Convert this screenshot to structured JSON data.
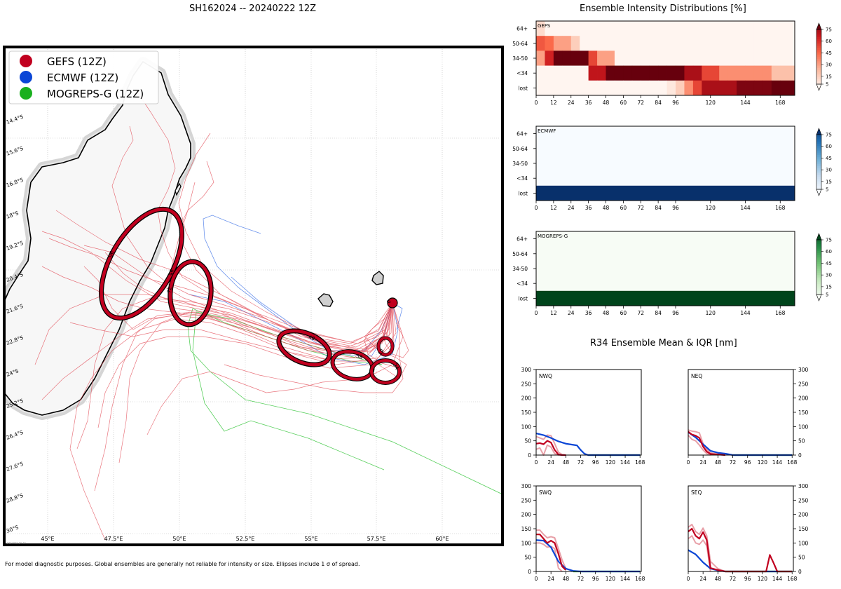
{
  "map": {
    "title": "SH162024 -- 20240222 12Z",
    "legend": [
      {
        "label": "GEFS (12Z)",
        "color": "#c1001f"
      },
      {
        "label": "ECMWF (12Z)",
        "color": "#0b46d6"
      },
      {
        "label": "MOGREPS-G (12Z)",
        "color": "#19b01e"
      }
    ],
    "lat_labels": [
      "14.4°S",
      "15.6°S",
      "16.8°S",
      "18°S",
      "19.2°S",
      "20.4°S",
      "21.6°S",
      "22.8°S",
      "24°S",
      "25.2°S",
      "26.4°S",
      "27.6°S",
      "28.8°S",
      "30°S"
    ],
    "lon_labels": [
      "45°E",
      "47.5°E",
      "50°E",
      "52.5°E",
      "55°E",
      "57.5°E",
      "60°E"
    ],
    "ellipse_labels": [
      "96",
      "96",
      "72",
      "48",
      "36",
      "24",
      "12",
      "0"
    ],
    "timestamp_note": "2024022 20:13",
    "footer": "For model diagnostic purposes. Global ensembles are generally not reliable for intensity or size. Ellipses include 1 σ of spread."
  },
  "chart_data": [
    {
      "type": "heatmap",
      "title": "Ensemble Intensity Distributions [%]",
      "panel_label": "GEFS",
      "colormap": "Reds",
      "y_categories": [
        "64+",
        "50-64",
        "34-50",
        "<34",
        "lost"
      ],
      "x_ticks": [
        0,
        12,
        24,
        36,
        48,
        60,
        72,
        84,
        96,
        120,
        144,
        168
      ],
      "lead_hours": [
        0,
        6,
        12,
        18,
        24,
        30,
        36,
        42,
        48,
        54,
        60,
        66,
        72,
        78,
        84,
        90,
        96,
        102,
        108,
        114,
        120,
        126,
        132,
        138,
        144,
        150,
        156,
        162,
        168
      ],
      "percent": {
        "64+": [
          10,
          0,
          0,
          0,
          0,
          0,
          0,
          0,
          0,
          0,
          0,
          0,
          0,
          0,
          0,
          0,
          0,
          0,
          0,
          0,
          0,
          0,
          0,
          0,
          0,
          0,
          0,
          0,
          0
        ],
        "50-64": [
          50,
          45,
          30,
          30,
          15,
          0,
          0,
          0,
          0,
          0,
          0,
          0,
          0,
          0,
          0,
          0,
          0,
          0,
          0,
          0,
          0,
          0,
          0,
          0,
          0,
          0,
          0,
          0,
          0
        ],
        "34-50": [
          30,
          65,
          90,
          90,
          90,
          90,
          55,
          30,
          30,
          0,
          0,
          0,
          0,
          0,
          0,
          0,
          0,
          0,
          0,
          0,
          0,
          0,
          0,
          0,
          0,
          0,
          0,
          0,
          0
        ],
        "<34": [
          0,
          0,
          0,
          0,
          0,
          0,
          70,
          70,
          90,
          90,
          90,
          90,
          90,
          90,
          90,
          90,
          90,
          75,
          75,
          55,
          55,
          35,
          35,
          35,
          35,
          35,
          35,
          20,
          20
        ],
        "lost": [
          0,
          0,
          0,
          0,
          0,
          0,
          0,
          0,
          0,
          0,
          0,
          0,
          0,
          0,
          0,
          5,
          15,
          35,
          55,
          75,
          75,
          75,
          75,
          85,
          85,
          85,
          85,
          90,
          90
        ]
      },
      "colorbar_ticks": [
        5,
        15,
        30,
        45,
        60,
        75
      ]
    },
    {
      "type": "heatmap",
      "panel_label": "ECMWF",
      "colormap": "Blues",
      "y_categories": [
        "64+",
        "50-64",
        "34-50",
        "<34",
        "lost"
      ],
      "x_ticks": [
        0,
        12,
        24,
        36,
        48,
        60,
        72,
        84,
        96,
        120,
        144,
        168
      ],
      "lead_hours": [
        0,
        168
      ],
      "percent": {
        "64+": [
          0,
          0
        ],
        "50-64": [
          0,
          0
        ],
        "34-50": [
          0,
          0
        ],
        "<34": [
          0,
          0
        ],
        "lost": [
          100,
          100
        ]
      },
      "colorbar_ticks": [
        5,
        15,
        30,
        45,
        60,
        75
      ]
    },
    {
      "type": "heatmap",
      "panel_label": "MOGREPS-G",
      "colormap": "Greens",
      "y_categories": [
        "64+",
        "50-64",
        "34-50",
        "<34",
        "lost"
      ],
      "x_ticks": [
        0,
        12,
        24,
        36,
        48,
        60,
        72,
        84,
        96,
        120,
        144,
        168
      ],
      "lead_hours": [
        0,
        168
      ],
      "percent": {
        "64+": [
          0,
          0
        ],
        "50-64": [
          0,
          0
        ],
        "34-50": [
          0,
          0
        ],
        "<34": [
          0,
          0
        ],
        "lost": [
          100,
          100
        ]
      },
      "colorbar_ticks": [
        5,
        15,
        30,
        45,
        60,
        75
      ]
    },
    {
      "type": "line",
      "title": "R34 Ensemble Mean & IQR [nm]",
      "x_ticks": [
        0,
        24,
        48,
        72,
        96,
        120,
        144,
        168
      ],
      "y_ticks": [
        0,
        50,
        100,
        150,
        200,
        250,
        300
      ],
      "xlim": [
        0,
        170
      ],
      "ylim": [
        0,
        300
      ],
      "panels": [
        {
          "label": "NWQ",
          "yaxis_side": "left",
          "series": [
            {
              "name": "GEFS mean",
              "color": "#c1001f",
              "x": [
                0,
                6,
                12,
                18,
                24,
                30,
                36,
                42,
                48
              ],
              "y": [
                40,
                42,
                38,
                50,
                44,
                18,
                2,
                0,
                0
              ]
            },
            {
              "name": "GEFS IQR high",
              "color": "#e8a0a8",
              "x": [
                0,
                6,
                12,
                18,
                24,
                30,
                36,
                42,
                48
              ],
              "y": [
                65,
                60,
                55,
                70,
                68,
                40,
                10,
                2,
                0
              ]
            },
            {
              "name": "GEFS IQR low",
              "color": "#e8a0a8",
              "x": [
                0,
                6,
                12,
                18,
                24,
                30,
                36,
                42
              ],
              "y": [
                20,
                25,
                0,
                35,
                28,
                5,
                0,
                0
              ]
            },
            {
              "name": "ECMWF",
              "color": "#0b46d6",
              "x": [
                0,
                12,
                24,
                36,
                48,
                60,
                66,
                72,
                78,
                84,
                168
              ],
              "y": [
                76,
                70,
                60,
                48,
                40,
                36,
                34,
                18,
                5,
                0,
                0
              ]
            },
            {
              "name": "MOGREPS-G",
              "color": "#19b01e",
              "x": [
                84,
                168
              ],
              "y": [
                0,
                0
              ]
            }
          ]
        },
        {
          "label": "NEQ",
          "yaxis_side": "right",
          "series": [
            {
              "name": "GEFS mean",
              "color": "#c1001f",
              "x": [
                0,
                6,
                12,
                18,
                24,
                30,
                36,
                48,
                60
              ],
              "y": [
                82,
                72,
                68,
                60,
                30,
                12,
                4,
                2,
                0
              ]
            },
            {
              "name": "GEFS IQR high",
              "color": "#e8a0a8",
              "x": [
                0,
                6,
                12,
                18,
                24,
                30,
                36,
                48,
                60
              ],
              "y": [
                88,
                84,
                82,
                78,
                40,
                20,
                8,
                4,
                0
              ]
            },
            {
              "name": "GEFS IQR low",
              "color": "#e8a0a8",
              "x": [
                0,
                6,
                12,
                18,
                24,
                30,
                36
              ],
              "y": [
                70,
                55,
                50,
                35,
                18,
                5,
                0
              ]
            },
            {
              "name": "ECMWF",
              "color": "#0b46d6",
              "x": [
                0,
                12,
                24,
                36,
                48,
                60,
                72,
                84,
                168
              ],
              "y": [
                80,
                62,
                38,
                15,
                8,
                5,
                0,
                0,
                0
              ]
            },
            {
              "name": "MOGREPS-G",
              "color": "#19b01e",
              "x": [
                72,
                168
              ],
              "y": [
                0,
                0
              ]
            }
          ]
        },
        {
          "label": "SWQ",
          "yaxis_side": "left",
          "series": [
            {
              "name": "GEFS mean",
              "color": "#c1001f",
              "x": [
                0,
                6,
                12,
                18,
                24,
                30,
                36,
                42,
                48
              ],
              "y": [
                130,
                130,
                115,
                100,
                108,
                100,
                62,
                18,
                5
              ]
            },
            {
              "name": "GEFS IQR high",
              "color": "#e8a0a8",
              "x": [
                0,
                6,
                12,
                18,
                24,
                30,
                36,
                42,
                48
              ],
              "y": [
                145,
                145,
                130,
                118,
                122,
                118,
                80,
                40,
                10
              ]
            },
            {
              "name": "GEFS IQR low",
              "color": "#e8a0a8",
              "x": [
                0,
                6,
                12,
                18,
                24,
                30,
                36,
                42
              ],
              "y": [
                100,
                100,
                95,
                85,
                88,
                80,
                12,
                0
              ]
            },
            {
              "name": "ECMWF",
              "color": "#0b46d6",
              "x": [
                0,
                12,
                24,
                36,
                48,
                60,
                72,
                168
              ],
              "y": [
                110,
                108,
                85,
                35,
                10,
                2,
                0,
                0
              ]
            },
            {
              "name": "MOGREPS-G",
              "color": "#19b01e",
              "x": [
                60,
                168
              ],
              "y": [
                0,
                0
              ]
            }
          ]
        },
        {
          "label": "SEQ",
          "yaxis_side": "right",
          "series": [
            {
              "name": "GEFS mean",
              "color": "#c1001f",
              "x": [
                0,
                6,
                12,
                18,
                24,
                30,
                36,
                48,
                60,
                72,
                84,
                96,
                120,
                126,
                132,
                138,
                144,
                168
              ],
              "y": [
                140,
                150,
                125,
                115,
                138,
                110,
                12,
                5,
                0,
                0,
                0,
                0,
                0,
                0,
                58,
                30,
                0,
                0
              ]
            },
            {
              "name": "GEFS IQR high",
              "color": "#e8a0a8",
              "x": [
                0,
                6,
                12,
                18,
                24,
                30,
                36,
                48,
                60
              ],
              "y": [
                155,
                165,
                140,
                130,
                152,
                125,
                35,
                10,
                0
              ]
            },
            {
              "name": "GEFS IQR low",
              "color": "#e8a0a8",
              "x": [
                0,
                6,
                12,
                18,
                24,
                30,
                36
              ],
              "y": [
                115,
                125,
                100,
                95,
                110,
                90,
                0
              ]
            },
            {
              "name": "ECMWF",
              "color": "#0b46d6",
              "x": [
                0,
                12,
                24,
                36,
                48,
                60,
                168
              ],
              "y": [
                75,
                60,
                32,
                10,
                4,
                0,
                0
              ]
            },
            {
              "name": "MOGREPS-G",
              "color": "#19b01e",
              "x": [
                60,
                168
              ],
              "y": [
                0,
                0
              ]
            }
          ]
        }
      ]
    }
  ]
}
